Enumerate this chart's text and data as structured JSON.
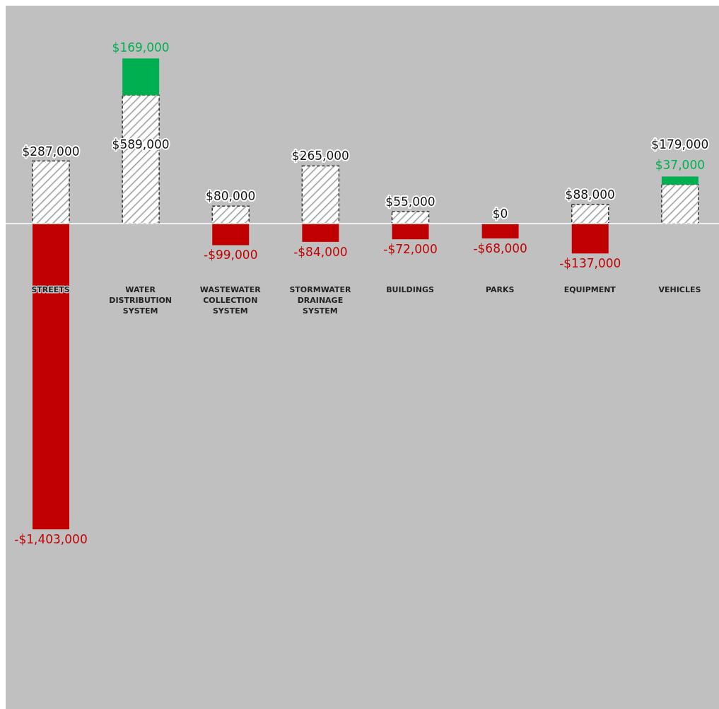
{
  "chart_data": {
    "type": "bar",
    "categories": [
      "STREETS",
      "WATER DISTRIBUTION SYSTEM",
      "WASTEWATER COLLECTION SYSTEM",
      "STORMWATER DRAINAGE SYSTEM",
      "BUILDINGS",
      "PARKS",
      "EQUIPMENT",
      "VEHICLES"
    ],
    "stacked": true,
    "ylim": [
      -2250000,
      1000000
    ],
    "tick_labels": "x",
    "ref_lines": [
      {
        "axis": "y",
        "value": 0,
        "color": "#ffffff"
      }
    ],
    "series": [
      {
        "color": "#333333",
        "line_style": "dashed",
        "values": [
          287000,
          589000,
          80000,
          265000,
          55000,
          0,
          88000,
          179000
        ],
        "value_labels": [
          "$287,000",
          "$589,000",
          "$80,000",
          "$265,000",
          "$55,000",
          "$0",
          "$88,000",
          "$179,000"
        ]
      },
      {
        "color": "#00b050",
        "values": [
          null,
          169000,
          null,
          null,
          null,
          null,
          null,
          37000
        ],
        "value_labels": [
          null,
          "$169,000",
          null,
          null,
          null,
          null,
          null,
          "$37,000"
        ]
      },
      {
        "color": "#c00000",
        "values": [
          -1403000,
          null,
          -99000,
          -84000,
          -72000,
          -68000,
          -137000,
          null
        ],
        "value_labels": [
          "-$1,403,000",
          null,
          "-$99,000",
          "-$84,000",
          "-$72,000",
          "-$68,000",
          "-$137,000",
          null
        ]
      }
    ]
  }
}
